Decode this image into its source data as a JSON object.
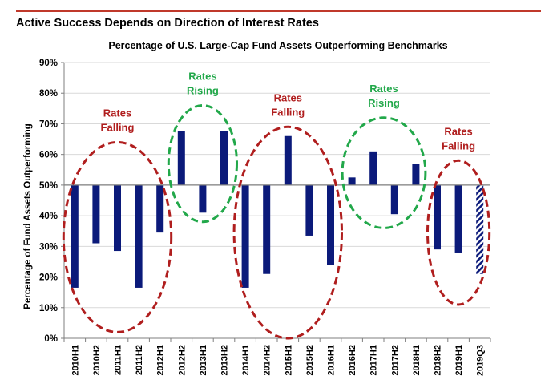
{
  "header": {
    "title": "Active Success Depends on Direction of Interest Rates"
  },
  "chart_data": {
    "type": "bar",
    "title": "Percentage of U.S. Large-Cap Fund Assets Outperforming Benchmarks",
    "ylabel": "Percentage of Fund Assets Outperforming",
    "xlabel": "",
    "ylim": [
      0,
      90
    ],
    "baseline": 50,
    "yticks": [
      "0%",
      "10%",
      "20%",
      "30%",
      "40%",
      "50%",
      "60%",
      "70%",
      "80%",
      "90%"
    ],
    "categories": [
      "2010H1",
      "2010H2",
      "2011H1",
      "2011H2",
      "2012H1",
      "2012H2",
      "2013H1",
      "2013H2",
      "2014H1",
      "2014H2",
      "2015H1",
      "2015H2",
      "2016H1",
      "2016H2",
      "2017H1",
      "2017H2",
      "2018H1",
      "2018H2",
      "2019H1",
      "2019Q3"
    ],
    "values": [
      16.5,
      31,
      28.5,
      16.5,
      34.5,
      67.5,
      41,
      67.5,
      16.5,
      21,
      66,
      33.5,
      24,
      52.5,
      61,
      40.5,
      57,
      29,
      28,
      21
    ],
    "bar_color": "#0b1a7a",
    "hatched": [
      "2019Q3"
    ],
    "annotations": [
      {
        "line1": "Rates",
        "line2": "Falling",
        "color": "#b01e1e"
      },
      {
        "line1": "Rates",
        "line2": "Rising",
        "color": "#22a84a"
      },
      {
        "line1": "Rates",
        "line2": "Falling",
        "color": "#b01e1e"
      },
      {
        "line1": "Rates",
        "line2": "Rising",
        "color": "#22a84a"
      },
      {
        "line1": "Rates",
        "line2": "Falling",
        "color": "#b01e1e"
      }
    ]
  }
}
